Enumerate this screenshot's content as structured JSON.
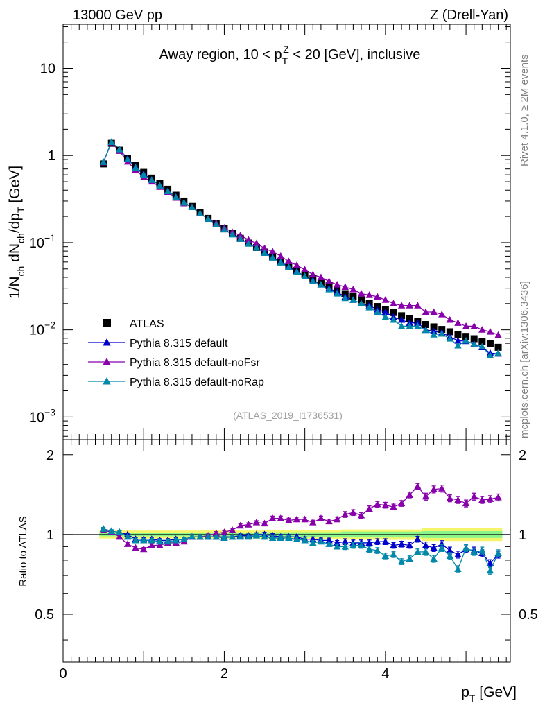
{
  "header": {
    "left": "13000 GeV pp",
    "right": "Z (Drell-Yan)"
  },
  "side": {
    "top": "Rivet 4.1.0, ≥ 2M events",
    "bottom": "mcplots.cern.ch [arXiv:1306.3436]"
  },
  "chart_data": [
    {
      "panel": "main",
      "type": "scatter",
      "title": "Away region, 10 < pT^Z < 20 [GeV], inclusive",
      "title_parts": {
        "pre": "Away region, 10 < p",
        "sub": "T",
        "sup": "Z",
        "post": " < 20 [GeV], inclusive"
      },
      "ylabel": "1/N_ch dN_ch/dp_T [GeV]",
      "ylabel_parts": [
        "1/N",
        "ch",
        " dN",
        "ch",
        "/dp",
        "T",
        " [GeV]"
      ],
      "xlabel": "",
      "xlim": [
        0,
        5.55
      ],
      "ylim": [
        0.00055,
        32
      ],
      "yscale": "log",
      "y_ticks": [
        {
          "value": 10,
          "label": "10"
        },
        {
          "value": 1,
          "label": "1"
        },
        {
          "value": 0.1,
          "mant": "10",
          "exp": "−1"
        },
        {
          "value": 0.01,
          "mant": "10",
          "exp": "−2"
        },
        {
          "value": 0.001,
          "mant": "10",
          "exp": "−3"
        }
      ],
      "watermark": "(ATLAS_2019_I1736531)",
      "legend_position": "bottom-left",
      "x": [
        0.5,
        0.6,
        0.7,
        0.8,
        0.9,
        1.0,
        1.1,
        1.2,
        1.3,
        1.4,
        1.5,
        1.6,
        1.7,
        1.8,
        1.9,
        2.0,
        2.1,
        2.2,
        2.3,
        2.4,
        2.5,
        2.6,
        2.7,
        2.8,
        2.9,
        3.0,
        3.1,
        3.2,
        3.3,
        3.4,
        3.5,
        3.6,
        3.7,
        3.8,
        3.9,
        4.0,
        4.1,
        4.2,
        4.3,
        4.4,
        4.5,
        4.6,
        4.7,
        4.8,
        4.9,
        5.0,
        5.1,
        5.2,
        5.3,
        5.4
      ],
      "series": [
        {
          "name": "ATLAS",
          "color": "#000000",
          "marker": "square",
          "line": false,
          "values": [
            0.8,
            1.38,
            1.15,
            0.92,
            0.77,
            0.64,
            0.55,
            0.48,
            0.41,
            0.35,
            0.3,
            0.26,
            0.22,
            0.19,
            0.165,
            0.145,
            0.127,
            0.112,
            0.099,
            0.088,
            0.078,
            0.069,
            0.061,
            0.054,
            0.048,
            0.043,
            0.039,
            0.035,
            0.032,
            0.029,
            0.026,
            0.024,
            0.022,
            0.02,
            0.0185,
            0.017,
            0.0158,
            0.0145,
            0.0135,
            0.0125,
            0.0115,
            0.0108,
            0.0101,
            0.0095,
            0.0089,
            0.0084,
            0.0079,
            0.0074,
            0.007,
            0.0063
          ]
        },
        {
          "name": "Pythia 8.315 default",
          "color": "#0000cc",
          "marker": "triangle",
          "line": true,
          "values": [
            0.84,
            1.425,
            1.173,
            0.92,
            0.739,
            0.614,
            0.528,
            0.456,
            0.391,
            0.335,
            0.288,
            0.255,
            0.216,
            0.187,
            0.162,
            0.142,
            0.125,
            0.111,
            0.098,
            0.088,
            0.078,
            0.068,
            0.06,
            0.053,
            0.047,
            0.041,
            0.037,
            0.033,
            0.03,
            0.027,
            0.024,
            0.022,
            0.02,
            0.019,
            0.017,
            0.016,
            0.014,
            0.013,
            0.012,
            0.012,
            0.01,
            0.0096,
            0.0093,
            0.0083,
            0.0075,
            0.0074,
            0.0069,
            0.0063,
            0.0054,
            0.0053
          ]
        },
        {
          "name": "Pythia 8.315 default-noFsr",
          "color": "#8800aa",
          "marker": "triangle",
          "line": true,
          "values": [
            0.832,
            1.408,
            1.127,
            0.847,
            0.685,
            0.563,
            0.501,
            0.435,
            0.381,
            0.326,
            0.282,
            0.255,
            0.216,
            0.188,
            0.167,
            0.148,
            0.132,
            0.121,
            0.108,
            0.098,
            0.086,
            0.079,
            0.07,
            0.061,
            0.055,
            0.049,
            0.043,
            0.04,
            0.036,
            0.033,
            0.031,
            0.029,
            0.026,
            0.025,
            0.024,
            0.022,
            0.02,
            0.019,
            0.019,
            0.019,
            0.016,
            0.016,
            0.015,
            0.013,
            0.012,
            0.011,
            0.011,
            0.01,
            0.0095,
            0.0087
          ]
        },
        {
          "name": "Pythia 8.315 default-noRap",
          "color": "#0088aa",
          "marker": "triangle",
          "line": true,
          "values": [
            0.84,
            1.425,
            1.173,
            0.902,
            0.724,
            0.602,
            0.523,
            0.451,
            0.388,
            0.331,
            0.287,
            0.255,
            0.216,
            0.187,
            0.162,
            0.141,
            0.124,
            0.11,
            0.097,
            0.087,
            0.076,
            0.067,
            0.059,
            0.052,
            0.046,
            0.041,
            0.036,
            0.033,
            0.029,
            0.026,
            0.023,
            0.022,
            0.02,
            0.018,
            0.016,
            0.014,
            0.013,
            0.011,
            0.011,
            0.011,
            0.0099,
            0.0088,
            0.009,
            0.0079,
            0.0066,
            0.0075,
            0.0068,
            0.0064,
            0.0051,
            0.0054
          ]
        }
      ]
    },
    {
      "panel": "ratio",
      "type": "scatter",
      "ylabel": "Ratio to ATLAS",
      "xlabel": "p_T [GeV]",
      "xlabel_parts": [
        "p",
        "T",
        " [GeV]"
      ],
      "xlim": [
        0,
        5.55
      ],
      "ylim": [
        0.33,
        2.28
      ],
      "yscale": "log",
      "x_ticks": [
        0,
        2,
        4
      ],
      "y_ticks": [
        {
          "value": 2,
          "label": "2"
        },
        {
          "value": 1,
          "label": "1"
        },
        {
          "value": 0.5,
          "label": "0.5"
        }
      ],
      "reference": 1.0,
      "band_inner": [
        0.985,
        0.985,
        0.985,
        0.985,
        0.985,
        0.985,
        0.985,
        0.985,
        0.985,
        0.985,
        0.985,
        0.985,
        0.985,
        0.985,
        0.985,
        0.985,
        0.985,
        0.985,
        0.985,
        0.985,
        0.98,
        0.98,
        0.98,
        0.98,
        0.98,
        0.98,
        0.98,
        0.98,
        0.98,
        0.98,
        0.975,
        0.975,
        0.975,
        0.975,
        0.975,
        0.975,
        0.975,
        0.975,
        0.975,
        0.975,
        0.97,
        0.97,
        0.97,
        0.97,
        0.97,
        0.97,
        0.97,
        0.97,
        0.97,
        0.97
      ],
      "band_outer": [
        0.965,
        0.965,
        0.965,
        0.965,
        0.965,
        0.965,
        0.965,
        0.965,
        0.965,
        0.965,
        0.965,
        0.965,
        0.965,
        0.965,
        0.965,
        0.965,
        0.965,
        0.965,
        0.965,
        0.965,
        0.96,
        0.96,
        0.96,
        0.96,
        0.96,
        0.96,
        0.96,
        0.96,
        0.96,
        0.96,
        0.955,
        0.955,
        0.955,
        0.955,
        0.955,
        0.955,
        0.955,
        0.955,
        0.955,
        0.955,
        0.945,
        0.945,
        0.945,
        0.945,
        0.945,
        0.945,
        0.945,
        0.945,
        0.945,
        0.945
      ],
      "series": [
        {
          "name": "Pythia 8.315 default",
          "color": "#0000cc",
          "values": [
            1.05,
            1.03,
            1.02,
            1.0,
            0.96,
            0.96,
            0.96,
            0.95,
            0.95,
            0.96,
            0.96,
            0.98,
            0.98,
            0.98,
            0.98,
            0.98,
            0.98,
            0.99,
            0.99,
            1.0,
            1.0,
            0.99,
            0.98,
            0.98,
            0.98,
            0.96,
            0.96,
            0.95,
            0.95,
            0.93,
            0.94,
            0.93,
            0.93,
            0.93,
            0.94,
            0.94,
            0.91,
            0.92,
            0.91,
            0.96,
            0.91,
            0.89,
            0.92,
            0.87,
            0.84,
            0.88,
            0.87,
            0.85,
            0.78,
            0.84
          ],
          "errors": [
            0.012,
            0.012,
            0.012,
            0.012,
            0.015,
            0.015,
            0.015,
            0.015,
            0.015,
            0.015,
            0.015,
            0.015,
            0.015,
            0.015,
            0.015,
            0.015,
            0.015,
            0.015,
            0.015,
            0.015,
            0.02,
            0.02,
            0.02,
            0.02,
            0.02,
            0.02,
            0.02,
            0.02,
            0.02,
            0.02,
            0.025,
            0.025,
            0.025,
            0.025,
            0.025,
            0.025,
            0.025,
            0.025,
            0.025,
            0.025,
            0.03,
            0.03,
            0.03,
            0.03,
            0.03,
            0.03,
            0.03,
            0.03,
            0.03,
            0.03
          ]
        },
        {
          "name": "Pythia 8.315 default-noFsr",
          "color": "#8800aa",
          "values": [
            1.04,
            1.02,
            0.98,
            0.92,
            0.89,
            0.88,
            0.91,
            0.91,
            0.93,
            0.93,
            0.94,
            0.98,
            0.98,
            0.99,
            1.01,
            1.02,
            1.04,
            1.08,
            1.09,
            1.11,
            1.1,
            1.15,
            1.15,
            1.13,
            1.14,
            1.14,
            1.11,
            1.15,
            1.12,
            1.14,
            1.19,
            1.21,
            1.18,
            1.25,
            1.3,
            1.29,
            1.27,
            1.31,
            1.41,
            1.52,
            1.39,
            1.48,
            1.49,
            1.37,
            1.35,
            1.31,
            1.39,
            1.35,
            1.36,
            1.38
          ],
          "errors": [
            0.012,
            0.012,
            0.012,
            0.012,
            0.015,
            0.015,
            0.015,
            0.015,
            0.015,
            0.015,
            0.015,
            0.015,
            0.015,
            0.015,
            0.015,
            0.015,
            0.015,
            0.015,
            0.015,
            0.015,
            0.02,
            0.02,
            0.02,
            0.02,
            0.02,
            0.02,
            0.02,
            0.02,
            0.02,
            0.02,
            0.025,
            0.025,
            0.025,
            0.025,
            0.025,
            0.025,
            0.025,
            0.025,
            0.025,
            0.025,
            0.03,
            0.03,
            0.03,
            0.03,
            0.03,
            0.03,
            0.03,
            0.03,
            0.03,
            0.03
          ]
        },
        {
          "name": "Pythia 8.315 default-noRap",
          "color": "#0088aa",
          "values": [
            1.05,
            1.03,
            1.02,
            0.98,
            0.95,
            0.95,
            0.95,
            0.94,
            0.94,
            0.95,
            0.96,
            0.98,
            0.98,
            0.98,
            0.98,
            0.97,
            0.98,
            0.98,
            0.98,
            0.99,
            0.98,
            0.97,
            0.97,
            0.97,
            0.96,
            0.95,
            0.93,
            0.94,
            0.92,
            0.9,
            0.9,
            0.91,
            0.91,
            0.88,
            0.87,
            0.83,
            0.84,
            0.79,
            0.81,
            0.86,
            0.86,
            0.81,
            0.89,
            0.83,
            0.74,
            0.89,
            0.86,
            0.87,
            0.73,
            0.85
          ],
          "errors": [
            0.012,
            0.012,
            0.012,
            0.012,
            0.015,
            0.015,
            0.015,
            0.015,
            0.015,
            0.015,
            0.015,
            0.015,
            0.015,
            0.015,
            0.015,
            0.015,
            0.015,
            0.015,
            0.015,
            0.015,
            0.02,
            0.02,
            0.02,
            0.02,
            0.02,
            0.02,
            0.02,
            0.02,
            0.02,
            0.02,
            0.025,
            0.025,
            0.025,
            0.025,
            0.025,
            0.025,
            0.025,
            0.025,
            0.025,
            0.025,
            0.03,
            0.03,
            0.03,
            0.03,
            0.03,
            0.03,
            0.03,
            0.03,
            0.03,
            0.03
          ]
        }
      ]
    }
  ]
}
